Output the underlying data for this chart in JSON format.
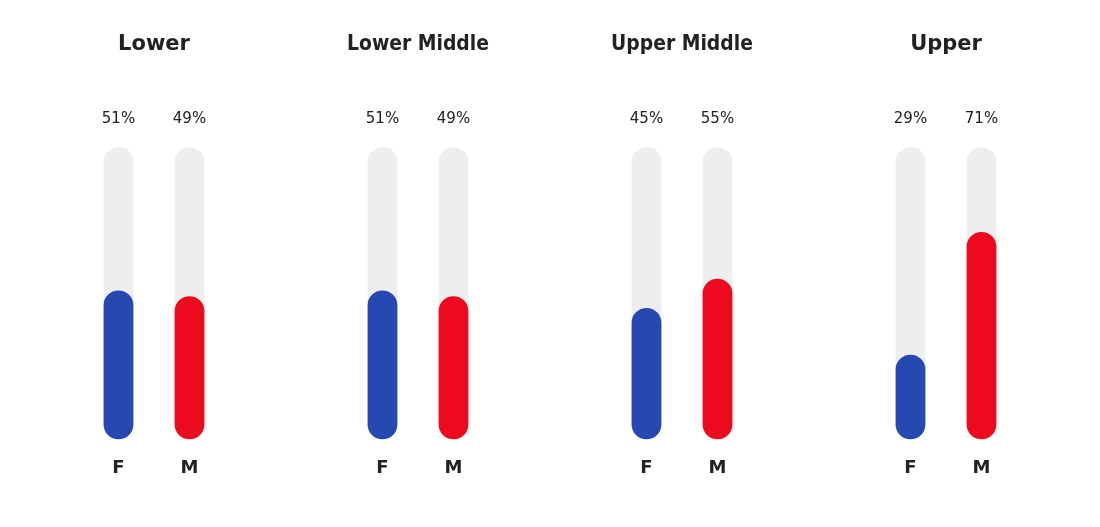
{
  "chart_data": [
    {
      "type": "bar",
      "title": "Lower",
      "categories": [
        "F",
        "M"
      ],
      "values": [
        51,
        49
      ],
      "colors": [
        "#2549b0",
        "#ee0a1e"
      ],
      "value_labels": [
        "51%",
        "49%"
      ],
      "ylim": [
        0,
        100
      ],
      "tick_labels": "x",
      "grid": false,
      "legend": false
    },
    {
      "type": "bar",
      "title": "Lower Middle",
      "categories": [
        "F",
        "M"
      ],
      "values": [
        51,
        49
      ],
      "colors": [
        "#2549b0",
        "#ee0a1e"
      ],
      "value_labels": [
        "51%",
        "49%"
      ],
      "ylim": [
        0,
        100
      ],
      "tick_labels": "x",
      "grid": false,
      "legend": false
    },
    {
      "type": "bar",
      "title": "Upper Middle",
      "categories": [
        "F",
        "M"
      ],
      "values": [
        45,
        55
      ],
      "colors": [
        "#2549b0",
        "#ee0a1e"
      ],
      "value_labels": [
        "45%",
        "55%"
      ],
      "ylim": [
        0,
        100
      ],
      "tick_labels": "x",
      "grid": false,
      "legend": false
    },
    {
      "type": "bar",
      "title": "Upper",
      "categories": [
        "F",
        "M"
      ],
      "values": [
        29,
        71
      ],
      "colors": [
        "#2549b0",
        "#ee0a1e"
      ],
      "value_labels": [
        "29%",
        "71%"
      ],
      "ylim": [
        0,
        100
      ],
      "tick_labels": "x",
      "grid": false,
      "legend": false
    }
  ]
}
